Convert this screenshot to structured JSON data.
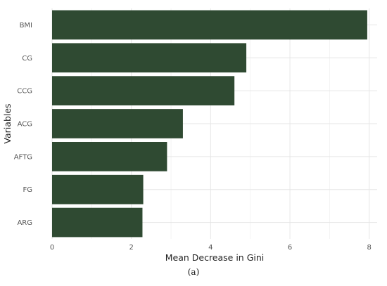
{
  "chart_data": {
    "type": "bar",
    "orientation": "horizontal",
    "categories": [
      "BMI",
      "CG",
      "CCG",
      "ACG",
      "AFTG",
      "FG",
      "ARG"
    ],
    "values": [
      7.95,
      4.9,
      4.6,
      3.3,
      2.9,
      2.3,
      2.28
    ],
    "xlabel": "Mean Decrease in Gini",
    "ylabel": "Variables",
    "xlim": [
      0,
      8.2
    ],
    "xticks": [
      0,
      2,
      4,
      6,
      8
    ],
    "grid": true,
    "bar_color": "#2f4a32",
    "caption": "(a)"
  }
}
